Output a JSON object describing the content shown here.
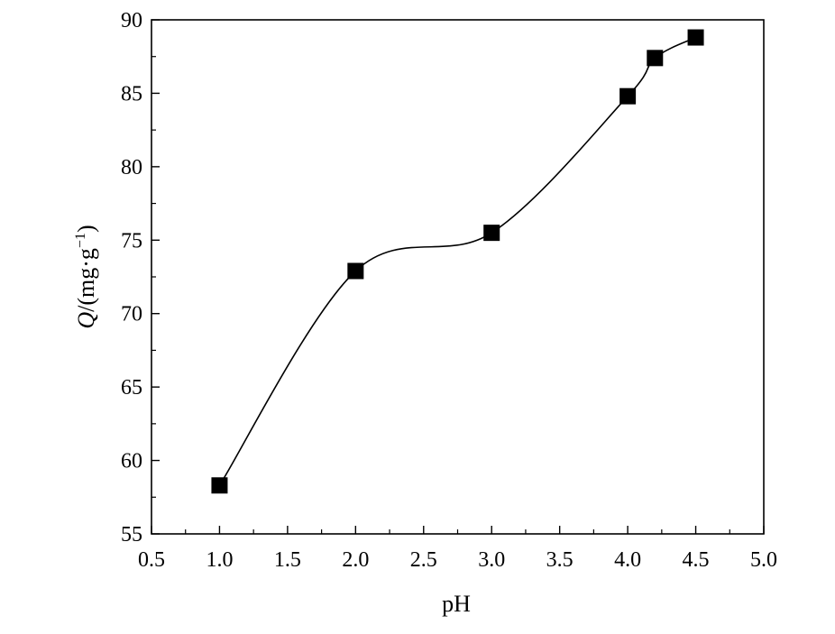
{
  "chart_data": {
    "type": "scatter",
    "title": "",
    "xlabel": "pH",
    "ylabel": {
      "symbol": "Q",
      "open": "/(mg·g",
      "sup": "−1",
      "close": ")"
    },
    "xlim": [
      0.5,
      5.0
    ],
    "ylim": [
      55,
      90
    ],
    "x_ticks": [
      "0.5",
      "1.0",
      "1.5",
      "2.0",
      "2.5",
      "3.0",
      "3.5",
      "4.0",
      "4.5",
      "5.0"
    ],
    "y_ticks": [
      "55",
      "60",
      "65",
      "70",
      "75",
      "80",
      "85",
      "90"
    ],
    "grid": false,
    "legend": "none",
    "series": [
      {
        "x": [
          1.0,
          2.0,
          3.0,
          4.0,
          4.2,
          4.5
        ],
        "y": [
          58.3,
          72.9,
          75.5,
          84.8,
          87.4,
          88.8
        ],
        "marker": "square",
        "line": "smooth",
        "color": "#000000"
      }
    ]
  }
}
